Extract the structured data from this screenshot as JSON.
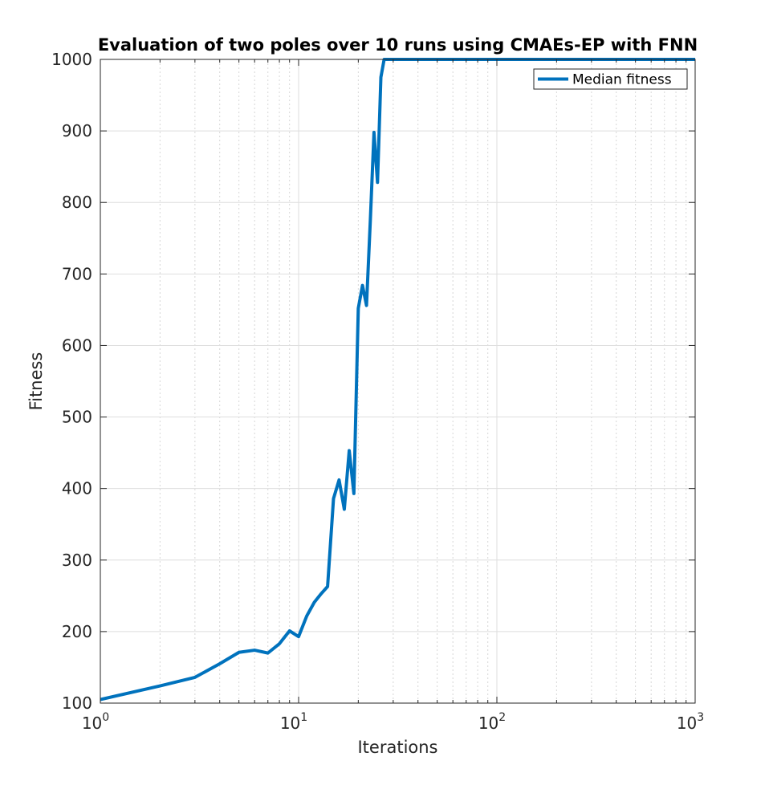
{
  "chart_data": {
    "type": "line",
    "title": "Evaluation of two poles over 10 runs using CMAEs-EP with FNN",
    "xlabel": "Iterations",
    "ylabel": "Fitness",
    "xscale": "log",
    "xlim": [
      1,
      1000
    ],
    "ylim": [
      100,
      1000
    ],
    "grid": true,
    "minor_grid": true,
    "legend_position": "top-right",
    "x_ticks": [
      {
        "value": 1,
        "base": "10",
        "exp": "0"
      },
      {
        "value": 10,
        "base": "10",
        "exp": "1"
      },
      {
        "value": 100,
        "base": "10",
        "exp": "2"
      },
      {
        "value": 1000,
        "base": "10",
        "exp": "3"
      }
    ],
    "y_ticks": [
      {
        "value": 100,
        "label": "100"
      },
      {
        "value": 200,
        "label": "200"
      },
      {
        "value": 300,
        "label": "300"
      },
      {
        "value": 400,
        "label": "400"
      },
      {
        "value": 500,
        "label": "500"
      },
      {
        "value": 600,
        "label": "600"
      },
      {
        "value": 700,
        "label": "700"
      },
      {
        "value": 800,
        "label": "800"
      },
      {
        "value": 900,
        "label": "900"
      },
      {
        "value": 1000,
        "label": "1000"
      }
    ],
    "series": [
      {
        "name": "Median fitness",
        "color": "#0072BD",
        "x": [
          1,
          2,
          3,
          4,
          5,
          6,
          7,
          8,
          9,
          10,
          11,
          12,
          13,
          14,
          15,
          16,
          17,
          18,
          19,
          20,
          21,
          22,
          23,
          24,
          25,
          26,
          27,
          28,
          30,
          50,
          100,
          200,
          500,
          1000
        ],
        "y": [
          105,
          124,
          136,
          155,
          171,
          174,
          170,
          183,
          201,
          193,
          222,
          241,
          253,
          263,
          386,
          412,
          371,
          453,
          393,
          652,
          684,
          656,
          775,
          898,
          828,
          975,
          1000,
          1000,
          1000,
          1000,
          1000,
          1000,
          1000,
          1000
        ]
      }
    ]
  }
}
